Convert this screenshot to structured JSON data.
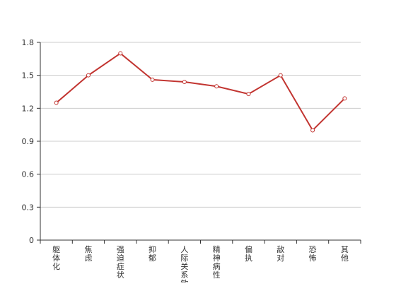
{
  "chart_data": {
    "type": "line",
    "title": "",
    "xlabel": "",
    "ylabel": "",
    "categories": [
      "躯体化",
      "焦虑",
      "强迫症状",
      "抑郁",
      "人际关系敏感",
      "精神病性",
      "偏执",
      "敌对",
      "恐怖",
      "其他"
    ],
    "series": [
      {
        "values": [
          1.25,
          1.5,
          1.7,
          1.46,
          1.44,
          1.4,
          1.33,
          1.5,
          1.0,
          1.29
        ]
      }
    ],
    "ylim": [
      0,
      1.8
    ],
    "yticks": [
      "0",
      "0.3",
      "0.6",
      "0.9",
      "1.2",
      "1.5",
      "1.8"
    ],
    "grid": true,
    "legend": "none",
    "colors": {
      "line": "#c23531",
      "point_fill": "#ffffff",
      "grid": "#cccccc",
      "axis": "#333333"
    }
  }
}
